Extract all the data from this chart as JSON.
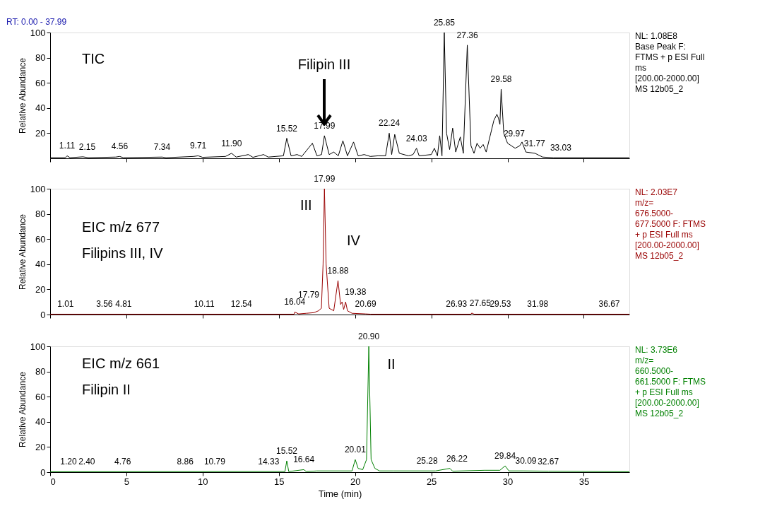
{
  "chart_data": [
    {
      "type": "line",
      "ylabel": "Relative Abundance",
      "xlim": [
        0,
        37.99
      ],
      "xticks": [
        0,
        5,
        10,
        15,
        20,
        25,
        30,
        35
      ],
      "ylim": [
        0,
        100
      ],
      "yticks": [
        20,
        40,
        60,
        80,
        100
      ],
      "tick_labels": "y",
      "x": [
        0,
        1.0,
        1.11,
        1.3,
        2.15,
        2.5,
        4.3,
        4.56,
        4.8,
        7.34,
        7.6,
        9.4,
        9.71,
        10.0,
        11.5,
        11.9,
        12.2,
        13.0,
        13.3,
        14.0,
        14.3,
        15.3,
        15.52,
        15.8,
        16.2,
        16.5,
        17.2,
        17.5,
        17.8,
        17.99,
        18.3,
        18.6,
        18.9,
        19.2,
        19.5,
        19.9,
        20.2,
        20.6,
        21.0,
        21.5,
        22.0,
        22.24,
        22.4,
        22.6,
        22.9,
        23.5,
        23.8,
        24.03,
        24.2,
        25.0,
        25.2,
        25.4,
        25.55,
        25.7,
        25.85,
        26.0,
        26.2,
        26.4,
        26.6,
        26.9,
        27.1,
        27.36,
        27.6,
        27.8,
        28.0,
        28.2,
        28.4,
        28.6,
        28.9,
        29.1,
        29.3,
        29.4,
        29.5,
        29.58,
        29.75,
        30.0,
        30.5,
        30.8,
        30.95,
        31.2,
        31.8,
        32.3,
        33.0,
        37.99
      ],
      "series": [
        {
          "color": "#000000",
          "values": [
            0.5,
            0.5,
            2,
            0.5,
            1.2,
            0.5,
            1,
            1.5,
            0.5,
            1,
            0.5,
            1.5,
            2,
            0.8,
            1.5,
            4,
            1,
            3,
            0.8,
            3,
            1,
            2,
            16,
            2,
            3,
            1.5,
            12,
            2,
            3,
            18,
            3,
            5,
            2,
            14,
            2,
            13,
            2,
            3,
            1.5,
            2,
            2,
            20,
            3,
            19,
            4,
            2,
            3,
            8,
            2,
            3,
            8,
            2,
            18,
            2,
            100,
            20,
            7,
            24,
            5,
            17,
            4,
            90,
            10,
            4,
            12,
            8,
            11,
            5,
            20,
            30,
            35,
            32,
            27,
            55,
            20,
            12,
            8,
            10,
            13,
            5,
            4,
            1,
            0.5,
            0.5
          ]
        }
      ],
      "annotations": [
        "RT: 0.00 - 37.99",
        "TIC",
        "NL: 1.08E8\nBase Peak F:\nFTMS + p ESI Full\nms\n[200.00-2000.00]\nMS 12b05_2",
        "Filipin III",
        {
          "text": "1.11",
          "x": 1.11,
          "y": 2
        },
        {
          "text": "2.15",
          "x": 2.15,
          "y": 1.2
        },
        {
          "text": "4.56",
          "x": 4.56,
          "y": 1.5
        },
        {
          "text": "7.34",
          "x": 7.34,
          "y": 1
        },
        {
          "text": "9.71",
          "x": 9.71,
          "y": 2
        },
        {
          "text": "11.90",
          "x": 11.9,
          "y": 4
        },
        {
          "text": "15.52",
          "x": 15.52,
          "y": 16
        },
        {
          "text": "17.99",
          "x": 17.99,
          "y": 18
        },
        {
          "text": "22.24",
          "x": 22.24,
          "y": 20
        },
        {
          "text": "24.03",
          "x": 24.03,
          "y": 8
        },
        {
          "text": "25.85",
          "x": 25.85,
          "y": 100
        },
        {
          "text": "27.36",
          "x": 27.36,
          "y": 90
        },
        {
          "text": "29.58",
          "x": 29.58,
          "y": 55
        },
        {
          "text": "29.97",
          "x": 29.97,
          "y": 12
        },
        {
          "text": "31.77",
          "x": 31.77,
          "y": 4
        },
        {
          "text": "33.03",
          "x": 33.03,
          "y": 0.5
        }
      ]
    },
    {
      "type": "line",
      "ylabel": "Relative Abundance",
      "xlim": [
        0,
        37.99
      ],
      "xticks": [
        0,
        5,
        10,
        15,
        20,
        25,
        30,
        35
      ],
      "ylim": [
        0,
        100
      ],
      "yticks": [
        0,
        20,
        40,
        60,
        80,
        100
      ],
      "tick_labels": "y",
      "x": [
        0,
        16.0,
        16.04,
        16.3,
        16.8,
        17.3,
        17.6,
        17.79,
        17.9,
        17.99,
        18.1,
        18.3,
        18.6,
        18.88,
        19.05,
        19.15,
        19.25,
        19.38,
        19.5,
        19.8,
        20.69,
        21.0,
        27.6,
        27.65,
        27.8,
        37.99
      ],
      "series": [
        {
          "color": "#990000",
          "values": [
            0.3,
            0.3,
            2,
            0.5,
            1,
            1.5,
            3,
            5,
            40,
            100,
            40,
            5,
            3,
            27,
            8,
            10,
            4,
            10,
            3,
            1,
            0.5,
            0.3,
            0.3,
            1.2,
            0.3,
            0.3
          ]
        }
      ],
      "annotations": [
        "EIC m/z 677",
        "Filipins III, IV",
        "NL: 2.03E7\nm/z=\n676.5000-\n677.5000 F: FTMS\n+ p ESI Full ms\n[200.00-2000.00]\nMS 12b05_2",
        {
          "text": "III",
          "x": 17.99,
          "y": 100
        },
        {
          "text": "IV",
          "x": 18.88,
          "y": 27
        },
        {
          "text": "1.01",
          "x": 1.01,
          "y": 0.3
        },
        {
          "text": "3.56",
          "x": 3.56,
          "y": 0.3
        },
        {
          "text": "4.81",
          "x": 4.81,
          "y": 0.3
        },
        {
          "text": "10.11",
          "x": 10.11,
          "y": 0.3
        },
        {
          "text": "12.54",
          "x": 12.54,
          "y": 0.3
        },
        {
          "text": "16.04",
          "x": 16.04,
          "y": 2
        },
        {
          "text": "17.79",
          "x": 17.79,
          "y": 5
        },
        {
          "text": "17.99",
          "x": 17.99,
          "y": 100
        },
        {
          "text": "18.88",
          "x": 18.88,
          "y": 27
        },
        {
          "text": "19.38",
          "x": 19.38,
          "y": 10
        },
        {
          "text": "20.69",
          "x": 20.69,
          "y": 0.5
        },
        {
          "text": "26.93",
          "x": 26.93,
          "y": 0.3
        },
        {
          "text": "27.65",
          "x": 27.65,
          "y": 1.2
        },
        {
          "text": "29.53",
          "x": 29.53,
          "y": 0.3
        },
        {
          "text": "31.98",
          "x": 31.98,
          "y": 0.3
        },
        {
          "text": "36.67",
          "x": 36.67,
          "y": 0.3
        }
      ]
    },
    {
      "type": "line",
      "ylabel": "Relative Abundance",
      "xlabel": "Time (min)",
      "xlim": [
        0,
        37.99
      ],
      "xticks": [
        0,
        5,
        10,
        15,
        20,
        25,
        30,
        35
      ],
      "ylim": [
        0,
        100
      ],
      "yticks": [
        0,
        20,
        40,
        60,
        80,
        100
      ],
      "x": [
        0,
        15.4,
        15.52,
        15.65,
        16.64,
        16.8,
        17.5,
        19.8,
        20.01,
        20.2,
        20.5,
        20.75,
        20.9,
        21.05,
        21.3,
        21.6,
        22.5,
        25.28,
        26.22,
        26.4,
        28.5,
        29.5,
        29.84,
        30.09,
        30.3,
        31.0,
        32.67,
        37.99
      ],
      "series": [
        {
          "color": "#008000",
          "values": [
            0.3,
            0.5,
            9,
            0.5,
            2,
            0.5,
            1,
            1,
            10,
            3,
            2,
            10,
            100,
            10,
            3,
            1,
            1,
            1,
            3,
            0.8,
            1.5,
            1.5,
            5,
            1,
            1,
            1,
            0.8,
            0.3
          ]
        }
      ],
      "annotations": [
        "EIC m/z 661",
        "Filipin II",
        "NL: 3.73E6\nm/z=\n660.5000-\n661.5000 F: FTMS\n+ p ESI Full ms\n[200.00-2000.00]\nMS 12b05_2",
        {
          "text": "II",
          "x": 20.9,
          "y": 100
        },
        {
          "text": "1.20",
          "x": 1.2,
          "y": 0.3
        },
        {
          "text": "2.40",
          "x": 2.4,
          "y": 0.3
        },
        {
          "text": "4.76",
          "x": 4.76,
          "y": 0.3
        },
        {
          "text": "8.86",
          "x": 8.86,
          "y": 0.3
        },
        {
          "text": "10.79",
          "x": 10.79,
          "y": 0.3
        },
        {
          "text": "14.33",
          "x": 14.33,
          "y": 0.3
        },
        {
          "text": "15.52",
          "x": 15.52,
          "y": 9
        },
        {
          "text": "16.64",
          "x": 16.64,
          "y": 2
        },
        {
          "text": "20.01",
          "x": 20.01,
          "y": 10
        },
        {
          "text": "20.90",
          "x": 20.9,
          "y": 100
        },
        {
          "text": "25.28",
          "x": 25.28,
          "y": 1
        },
        {
          "text": "26.22",
          "x": 26.22,
          "y": 3
        },
        {
          "text": "29.84",
          "x": 29.84,
          "y": 5
        },
        {
          "text": "30.09",
          "x": 30.09,
          "y": 1
        },
        {
          "text": "32.67",
          "x": 32.67,
          "y": 0.8
        }
      ]
    }
  ]
}
